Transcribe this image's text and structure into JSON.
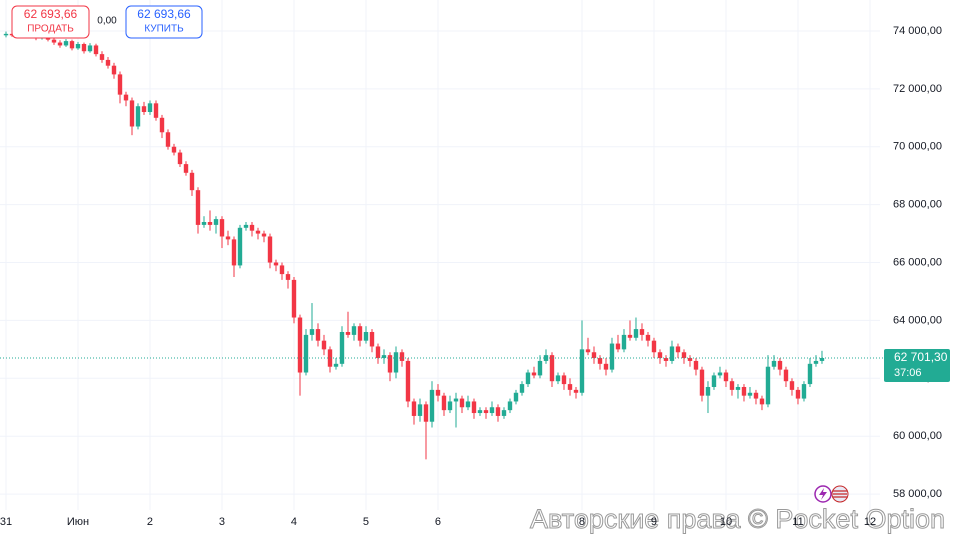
{
  "chart_data": {
    "type": "candlestick",
    "sell": {
      "price": "62 693,66",
      "label": "ПРОДАТЬ"
    },
    "spread": "0,00",
    "buy": {
      "price": "62 693,66",
      "label": "КУПИТЬ"
    },
    "current_price": {
      "value": 62701.3,
      "label": "62 701,30"
    },
    "countdown": "37:06",
    "watermark": "Авторские права © Pocket Option",
    "up_color": "#22ab94",
    "down_color": "#f23645",
    "grid": true,
    "ylim": [
      57450,
      75070
    ],
    "xlim": [
      -1,
      145.67
    ],
    "yticks": [
      {
        "value": 74000,
        "label": "74 000,00"
      },
      {
        "value": 72000,
        "label": "72 000,00"
      },
      {
        "value": 70000,
        "label": "70 000,00"
      },
      {
        "value": 68000,
        "label": "68 000,00"
      },
      {
        "value": 66000,
        "label": "66 000,00"
      },
      {
        "value": 64000,
        "label": "64 000,00"
      },
      {
        "value": 62000,
        "label": "62 000,00"
      },
      {
        "value": 60000,
        "label": "60 000,00"
      },
      {
        "value": 58000,
        "label": "58 000,00"
      }
    ],
    "xticks": [
      {
        "value": 0,
        "label": "31"
      },
      {
        "value": 12,
        "label": "Июн"
      },
      {
        "value": 24,
        "label": "2"
      },
      {
        "value": 36,
        "label": "3"
      },
      {
        "value": 48,
        "label": "4"
      },
      {
        "value": 60,
        "label": "5"
      },
      {
        "value": 72,
        "label": "6"
      },
      {
        "value": 96,
        "label": "8"
      },
      {
        "value": 108,
        "label": "9"
      },
      {
        "value": 120,
        "label": "10"
      },
      {
        "value": 132,
        "label": "11"
      },
      {
        "value": 144,
        "label": "12"
      }
    ],
    "ohlc": [
      [
        73850,
        73980,
        73780,
        73900
      ],
      [
        73900,
        73950,
        73800,
        73850
      ],
      [
        73850,
        74020,
        73800,
        73950
      ],
      [
        73950,
        74000,
        73750,
        73800
      ],
      [
        73800,
        73960,
        73740,
        73900
      ],
      [
        73900,
        73950,
        73680,
        73750
      ],
      [
        73750,
        73900,
        73700,
        73850
      ],
      [
        73850,
        73900,
        73640,
        73700
      ],
      [
        73700,
        73760,
        73520,
        73600
      ],
      [
        73600,
        73680,
        73420,
        73500
      ],
      [
        73500,
        73720,
        73450,
        73650
      ],
      [
        73650,
        73700,
        73330,
        73400
      ],
      [
        73400,
        73620,
        73350,
        73550
      ],
      [
        73550,
        73600,
        73220,
        73300
      ],
      [
        73300,
        73580,
        73250,
        73500
      ],
      [
        73500,
        73560,
        73120,
        73200
      ],
      [
        73200,
        73300,
        72900,
        73000
      ],
      [
        73000,
        73100,
        72700,
        72800
      ],
      [
        72800,
        72900,
        72350,
        72500
      ],
      [
        72500,
        72600,
        71500,
        71800
      ],
      [
        71800,
        71900,
        71400,
        71600
      ],
      [
        71600,
        71700,
        70400,
        70700
      ],
      [
        70700,
        71500,
        70600,
        71400
      ],
      [
        71400,
        71550,
        71100,
        71200
      ],
      [
        71200,
        71600,
        71100,
        71500
      ],
      [
        71500,
        71600,
        70900,
        71000
      ],
      [
        71000,
        71100,
        70300,
        70500
      ],
      [
        70500,
        70600,
        69900,
        70000
      ],
      [
        70000,
        70100,
        69700,
        69800
      ],
      [
        69800,
        69900,
        69300,
        69400
      ],
      [
        69400,
        69500,
        69000,
        69100
      ],
      [
        69100,
        69200,
        68300,
        68500
      ],
      [
        68500,
        68600,
        67000,
        67300
      ],
      [
        67300,
        67600,
        67200,
        67400
      ],
      [
        67400,
        67800,
        67100,
        67300
      ],
      [
        67300,
        67600,
        67000,
        67500
      ],
      [
        67500,
        67600,
        66500,
        66900
      ],
      [
        66900,
        67100,
        66600,
        66800
      ],
      [
        66800,
        66900,
        65500,
        65900
      ],
      [
        65900,
        67300,
        65800,
        67200
      ],
      [
        67200,
        67400,
        67100,
        67300
      ],
      [
        67300,
        67400,
        66900,
        67100
      ],
      [
        67100,
        67200,
        66800,
        67000
      ],
      [
        67000,
        67100,
        66700,
        66900
      ],
      [
        66900,
        67000,
        65800,
        66000
      ],
      [
        66000,
        66100,
        65700,
        65900
      ],
      [
        65900,
        66000,
        65400,
        65600
      ],
      [
        65600,
        65700,
        65100,
        65400
      ],
      [
        65400,
        65500,
        63900,
        64100
      ],
      [
        64100,
        64200,
        61400,
        62200
      ],
      [
        62200,
        63700,
        62100,
        63500
      ],
      [
        63500,
        64600,
        63300,
        63700
      ],
      [
        63700,
        63900,
        63100,
        63300
      ],
      [
        63300,
        63500,
        62800,
        63000
      ],
      [
        63000,
        63100,
        62200,
        62400
      ],
      [
        62400,
        62700,
        62300,
        62500
      ],
      [
        62500,
        63800,
        62400,
        63600
      ],
      [
        63600,
        64300,
        63400,
        63500
      ],
      [
        63500,
        63900,
        63300,
        63800
      ],
      [
        63800,
        63900,
        63100,
        63300
      ],
      [
        63300,
        63800,
        63200,
        63600
      ],
      [
        63600,
        63700,
        62900,
        63100
      ],
      [
        63100,
        63200,
        62500,
        62700
      ],
      [
        62700,
        63000,
        62500,
        62800
      ],
      [
        62800,
        62900,
        61900,
        62200
      ],
      [
        62200,
        63100,
        62000,
        62900
      ],
      [
        62900,
        63000,
        62400,
        62600
      ],
      [
        62600,
        62700,
        61000,
        61200
      ],
      [
        61200,
        61300,
        60400,
        60700
      ],
      [
        60700,
        61300,
        60500,
        61100
      ],
      [
        61100,
        61200,
        59200,
        60500
      ],
      [
        60500,
        61900,
        60300,
        61600
      ],
      [
        61600,
        61800,
        61200,
        61400
      ],
      [
        61400,
        61500,
        60700,
        60900
      ],
      [
        60900,
        61400,
        60800,
        61200
      ],
      [
        61200,
        61500,
        60300,
        61300
      ],
      [
        61300,
        61400,
        60800,
        61000
      ],
      [
        61000,
        61400,
        60900,
        61200
      ],
      [
        61200,
        61300,
        60600,
        60800
      ],
      [
        60800,
        61000,
        60700,
        60900
      ],
      [
        60900,
        61000,
        60600,
        60800
      ],
      [
        60800,
        61200,
        60700,
        61000
      ],
      [
        61000,
        61100,
        60500,
        60700
      ],
      [
        60700,
        61000,
        60600,
        60900
      ],
      [
        60900,
        61300,
        60800,
        61200
      ],
      [
        61200,
        61600,
        61100,
        61500
      ],
      [
        61500,
        61900,
        61400,
        61800
      ],
      [
        61800,
        62300,
        61700,
        62200
      ],
      [
        62200,
        62400,
        62000,
        62100
      ],
      [
        62100,
        62800,
        62000,
        62600
      ],
      [
        62600,
        63000,
        62500,
        62800
      ],
      [
        62800,
        62900,
        61700,
        61900
      ],
      [
        61900,
        62200,
        61800,
        62100
      ],
      [
        62100,
        62200,
        61600,
        61800
      ],
      [
        61800,
        62000,
        61400,
        61600
      ],
      [
        61600,
        61700,
        61300,
        61500
      ],
      [
        61500,
        64000,
        61400,
        63000
      ],
      [
        63000,
        63400,
        62800,
        62900
      ],
      [
        62900,
        63100,
        62500,
        62700
      ],
      [
        62700,
        62800,
        62300,
        62500
      ],
      [
        62500,
        62700,
        62100,
        62300
      ],
      [
        62300,
        63400,
        62200,
        63200
      ],
      [
        63200,
        63500,
        62900,
        63000
      ],
      [
        63000,
        63700,
        62900,
        63500
      ],
      [
        63500,
        64000,
        63300,
        63400
      ],
      [
        63400,
        64100,
        63300,
        63700
      ],
      [
        63700,
        63900,
        63300,
        63500
      ],
      [
        63500,
        63600,
        63100,
        63300
      ],
      [
        63300,
        63400,
        62700,
        62900
      ],
      [
        62900,
        63000,
        62500,
        62700
      ],
      [
        62700,
        62800,
        62400,
        62600
      ],
      [
        62600,
        63300,
        62500,
        63100
      ],
      [
        63100,
        63200,
        62700,
        62900
      ],
      [
        62900,
        63000,
        62500,
        62700
      ],
      [
        62700,
        62800,
        62400,
        62600
      ],
      [
        62600,
        62700,
        62100,
        62300
      ],
      [
        62300,
        62400,
        61200,
        61400
      ],
      [
        61400,
        61900,
        60800,
        61700
      ],
      [
        61700,
        62200,
        61600,
        62100
      ],
      [
        62100,
        62400,
        62000,
        62200
      ],
      [
        62200,
        62300,
        61700,
        61900
      ],
      [
        61900,
        62000,
        61400,
        61600
      ],
      [
        61600,
        61800,
        61300,
        61700
      ],
      [
        61700,
        61800,
        61200,
        61400
      ],
      [
        61400,
        61700,
        61300,
        61500
      ],
      [
        61500,
        61600,
        61100,
        61300
      ],
      [
        61300,
        61400,
        60900,
        61100
      ],
      [
        61100,
        62800,
        61000,
        62400
      ],
      [
        62400,
        62800,
        62300,
        62600
      ],
      [
        62600,
        62700,
        62100,
        62300
      ],
      [
        62300,
        62400,
        61700,
        61900
      ],
      [
        61900,
        62000,
        61400,
        61600
      ],
      [
        61600,
        61700,
        61100,
        61300
      ],
      [
        61300,
        61900,
        61200,
        61800
      ],
      [
        61800,
        62700,
        61700,
        62500
      ],
      [
        62500,
        62800,
        62400,
        62600
      ],
      [
        62600,
        62950,
        62500,
        62701.3
      ]
    ]
  }
}
